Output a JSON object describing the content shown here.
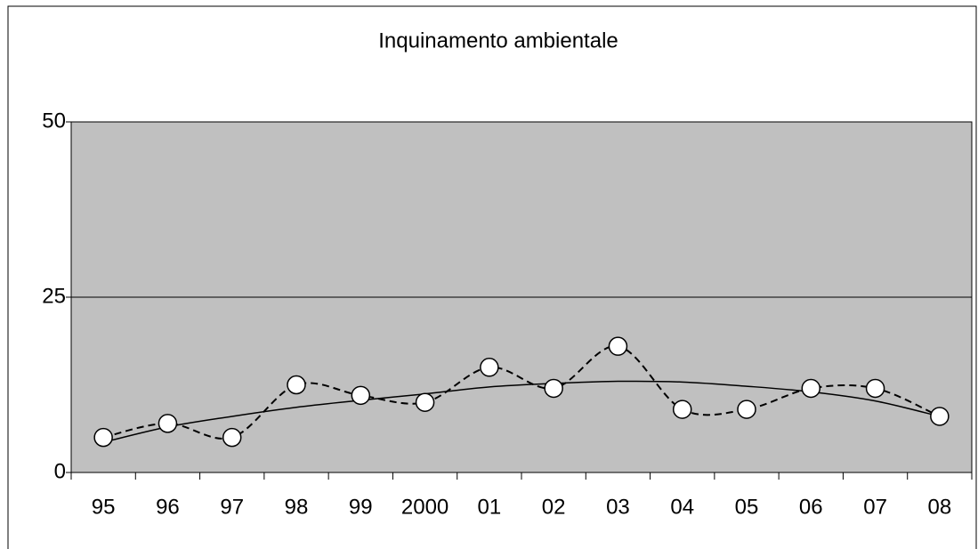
{
  "chart_data": {
    "type": "line",
    "title": "Inquinamento ambientale",
    "categories": [
      "95",
      "96",
      "97",
      "98",
      "99",
      "2000",
      "01",
      "02",
      "03",
      "04",
      "05",
      "06",
      "07",
      "08"
    ],
    "values": [
      5,
      7,
      5,
      12.5,
      11,
      10,
      15,
      12,
      18,
      9,
      9,
      12,
      12,
      8
    ],
    "trend": [
      4.3,
      6.5,
      8,
      9.3,
      10.3,
      11.2,
      12.2,
      12.7,
      13,
      12.9,
      12.3,
      11.5,
      10.2,
      8
    ],
    "color": "#000000",
    "plot_background": "#c0c0c0",
    "ylim": [
      0,
      50
    ],
    "yticks": [
      0,
      25,
      50
    ],
    "grid": true
  }
}
